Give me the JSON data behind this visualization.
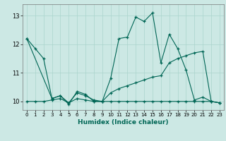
{
  "xlabel": "Humidex (Indice chaleur)",
  "bg_color": "#cce8e4",
  "grid_color": "#aad4cc",
  "line_color": "#006655",
  "xlim": [
    -0.5,
    23.5
  ],
  "ylim": [
    9.7,
    13.4
  ],
  "yticks": [
    10,
    11,
    12,
    13
  ],
  "xticks": [
    0,
    1,
    2,
    3,
    4,
    5,
    6,
    7,
    8,
    9,
    10,
    11,
    12,
    13,
    14,
    15,
    16,
    17,
    18,
    19,
    20,
    21,
    22,
    23
  ],
  "series": [
    {
      "x": [
        0,
        1,
        2,
        3,
        4,
        5,
        6,
        7,
        8,
        9,
        10,
        11,
        12,
        13,
        14,
        15,
        16,
        17,
        18,
        19,
        20,
        21,
        22,
        23
      ],
      "y": [
        12.2,
        11.85,
        11.5,
        10.1,
        10.2,
        9.9,
        10.35,
        10.25,
        10.0,
        10.0,
        10.8,
        12.2,
        12.25,
        12.95,
        12.8,
        13.1,
        11.35,
        12.35,
        11.85,
        11.1,
        10.05,
        10.15,
        10.0,
        9.95
      ]
    },
    {
      "x": [
        0,
        1,
        2,
        3,
        4,
        5,
        6,
        7,
        8,
        9,
        10,
        11,
        12,
        13,
        14,
        15,
        16,
        17,
        18,
        19,
        20,
        21,
        22,
        23
      ],
      "y": [
        10.0,
        10.0,
        10.0,
        10.05,
        10.1,
        9.95,
        10.1,
        10.05,
        10.0,
        10.0,
        10.0,
        10.0,
        10.0,
        10.0,
        10.0,
        10.0,
        10.0,
        10.0,
        10.0,
        10.0,
        10.0,
        10.0,
        10.0,
        9.95
      ]
    },
    {
      "x": [
        0,
        3,
        4,
        5,
        6,
        7,
        8,
        9,
        10,
        11,
        12,
        13,
        14,
        15,
        16,
        17,
        18,
        19,
        20,
        21,
        22,
        23
      ],
      "y": [
        12.2,
        10.1,
        10.2,
        9.95,
        10.3,
        10.2,
        10.05,
        10.0,
        10.3,
        10.45,
        10.55,
        10.65,
        10.75,
        10.85,
        10.9,
        11.35,
        11.5,
        11.6,
        11.7,
        11.75,
        10.0,
        9.95
      ]
    }
  ]
}
